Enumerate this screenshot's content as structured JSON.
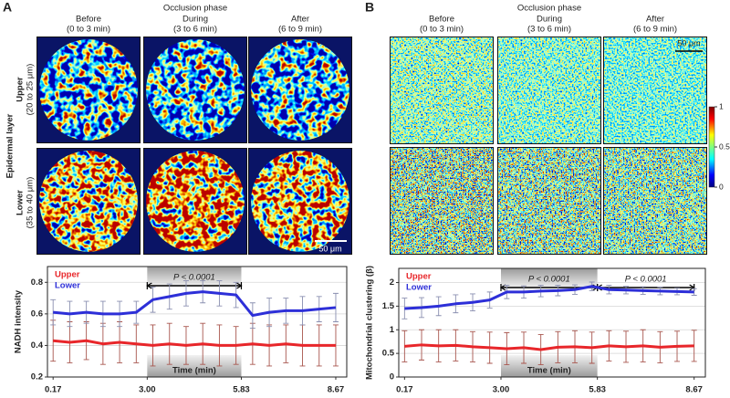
{
  "figure": {
    "panels": [
      {
        "label": "A",
        "header": "Occlusion phase",
        "columns": [
          [
            "Before",
            "(0 to 3 min)"
          ],
          [
            "During",
            "(3 to 6 min)"
          ],
          [
            "After",
            "(6 to 9 min)"
          ]
        ],
        "row_group": "Epidermal layer",
        "rows": [
          [
            "Upper",
            "(20 to 25 μm)"
          ],
          [
            "Lower",
            "(35 to 40 μm)"
          ]
        ],
        "scale_bar": "50 μm"
      },
      {
        "label": "B",
        "header": "Occlusion phase",
        "columns": [
          [
            "Before",
            "(0 to 3 min)"
          ],
          [
            "During",
            "(3 to 6 min)"
          ],
          [
            "After",
            "(6 to 9 min)"
          ]
        ],
        "scale_bar": "50 μm",
        "colorbar_ticks": [
          1,
          0.5,
          0
        ]
      }
    ]
  },
  "chart_data": [
    {
      "type": "line",
      "xlabel": "Time (min)",
      "ylabel": "NADH intensity",
      "x": [
        0.17,
        0.67,
        1.17,
        1.67,
        2.17,
        2.67,
        3.17,
        3.67,
        4.17,
        4.67,
        5.17,
        5.67,
        6.17,
        6.67,
        7.17,
        7.67,
        8.17,
        8.67
      ],
      "xlim": [
        0,
        9
      ],
      "xticks": [
        0.17,
        {
          "value": 3,
          "label": "3.00"
        },
        5.83,
        8.67
      ],
      "ylim": [
        0.2,
        0.9
      ],
      "yticks": [
        0.2,
        0.4,
        0.6,
        0.8
      ],
      "grid": true,
      "legend": "upper left",
      "series": [
        {
          "name": "Upper",
          "color": "#e8262a",
          "error_color": "#a8564e",
          "values": [
            0.43,
            0.42,
            0.43,
            0.41,
            0.42,
            0.41,
            0.4,
            0.41,
            0.4,
            0.41,
            0.4,
            0.4,
            0.41,
            0.4,
            0.41,
            0.4,
            0.4,
            0.4
          ],
          "errors": [
            0.13,
            0.13,
            0.12,
            0.13,
            0.13,
            0.12,
            0.13,
            0.13,
            0.12,
            0.13,
            0.13,
            0.12,
            0.13,
            0.13,
            0.12,
            0.13,
            0.13,
            0.13
          ]
        },
        {
          "name": "Lower",
          "color": "#2d2fd8",
          "error_color": "#8a8fb0",
          "values": [
            0.61,
            0.6,
            0.61,
            0.6,
            0.6,
            0.61,
            0.69,
            0.71,
            0.73,
            0.74,
            0.73,
            0.72,
            0.59,
            0.61,
            0.62,
            0.62,
            0.63,
            0.64
          ],
          "errors": [
            0.08,
            0.08,
            0.07,
            0.08,
            0.08,
            0.07,
            0.08,
            0.08,
            0.08,
            0.07,
            0.08,
            0.08,
            0.08,
            0.09,
            0.08,
            0.09,
            0.08,
            0.09
          ]
        }
      ],
      "brackets": [
        {
          "from": 3,
          "to": 5.83,
          "label": "P < 0.0001"
        }
      ]
    },
    {
      "type": "line",
      "xlabel": "Time (min)",
      "ylabel": "Mitochondrial clustering (β)",
      "x": [
        0.17,
        0.67,
        1.17,
        1.67,
        2.17,
        2.67,
        3.17,
        3.67,
        4.17,
        4.67,
        5.17,
        5.67,
        6.17,
        6.67,
        7.17,
        7.67,
        8.17,
        8.67
      ],
      "xlim": [
        0,
        9
      ],
      "xticks": [
        0.17,
        {
          "value": 3,
          "label": "3.00"
        },
        5.83,
        8.67
      ],
      "ylim": [
        0,
        2.3
      ],
      "yticks": [
        0,
        0.5,
        1,
        1.5,
        2
      ],
      "grid": true,
      "legend": "upper left",
      "series": [
        {
          "name": "Upper",
          "color": "#e8262a",
          "error_color": "#a8564e",
          "values": [
            0.65,
            0.68,
            0.66,
            0.67,
            0.64,
            0.62,
            0.6,
            0.62,
            0.58,
            0.63,
            0.64,
            0.62,
            0.66,
            0.64,
            0.66,
            0.63,
            0.65,
            0.66
          ],
          "errors": [
            0.33,
            0.32,
            0.34,
            0.33,
            0.32,
            0.33,
            0.34,
            0.33,
            0.32,
            0.33,
            0.34,
            0.33,
            0.32,
            0.33,
            0.34,
            0.33,
            0.32,
            0.33
          ]
        },
        {
          "name": "Lower",
          "color": "#2d2fd8",
          "error_color": "#8a8fb0",
          "values": [
            1.45,
            1.47,
            1.5,
            1.55,
            1.58,
            1.63,
            1.8,
            1.8,
            1.82,
            1.83,
            1.85,
            1.92,
            1.85,
            1.84,
            1.83,
            1.82,
            1.81,
            1.8
          ],
          "errors": [
            0.22,
            0.21,
            0.2,
            0.19,
            0.18,
            0.17,
            0.14,
            0.13,
            0.12,
            0.11,
            0.1,
            0.09,
            0.09,
            0.08,
            0.08,
            0.08,
            0.07,
            0.07
          ]
        }
      ],
      "brackets": [
        {
          "from": 3,
          "to": 5.83,
          "label": "P < 0.0001"
        },
        {
          "from": 5.83,
          "to": 8.67,
          "label": "P < 0.0001"
        }
      ]
    }
  ]
}
